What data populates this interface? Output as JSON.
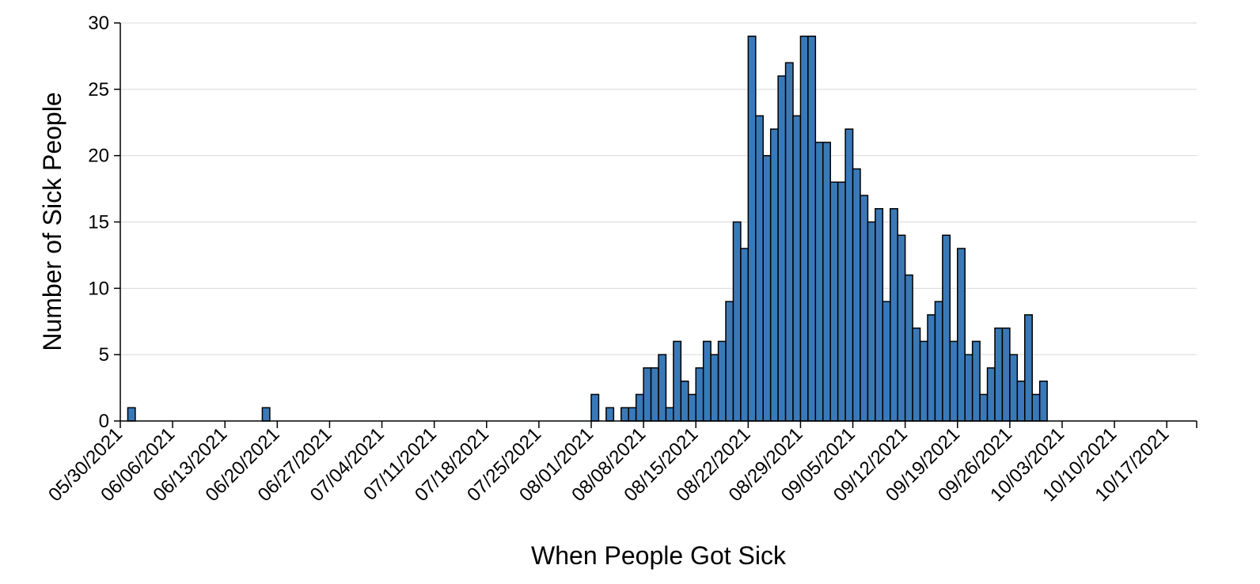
{
  "chart_data": {
    "type": "bar",
    "xlabel": "When People Got Sick",
    "ylabel": "Number of Sick People",
    "ylim": [
      0,
      30
    ],
    "yticks": [
      0,
      5,
      10,
      15,
      20,
      25,
      30
    ],
    "xlim": [
      "05/30/2021",
      "10/21/2021"
    ],
    "xtick_labels": [
      "05/30/2021",
      "06/06/2021",
      "06/13/2021",
      "06/20/2021",
      "06/27/2021",
      "07/04/2021",
      "07/11/2021",
      "07/18/2021",
      "07/25/2021",
      "08/01/2021",
      "08/08/2021",
      "08/15/2021",
      "08/22/2021",
      "08/29/2021",
      "09/05/2021",
      "09/12/2021",
      "09/19/2021",
      "09/26/2021",
      "10/03/2021",
      "10/10/2021",
      "10/17/2021"
    ],
    "grid": true,
    "bar_color": "#3a79b8",
    "dates": [
      "05/31/2021",
      "06/18/2021",
      "08/01/2021",
      "08/03/2021",
      "08/05/2021",
      "08/06/2021",
      "08/07/2021",
      "08/08/2021",
      "08/09/2021",
      "08/10/2021",
      "08/11/2021",
      "08/12/2021",
      "08/13/2021",
      "08/14/2021",
      "08/15/2021",
      "08/16/2021",
      "08/17/2021",
      "08/18/2021",
      "08/19/2021",
      "08/20/2021",
      "08/21/2021",
      "08/22/2021",
      "08/23/2021",
      "08/24/2021",
      "08/25/2021",
      "08/26/2021",
      "08/27/2021",
      "08/28/2021",
      "08/29/2021",
      "08/30/2021",
      "08/31/2021",
      "09/01/2021",
      "09/02/2021",
      "09/03/2021",
      "09/04/2021",
      "09/05/2021",
      "09/06/2021",
      "09/07/2021",
      "09/08/2021",
      "09/09/2021",
      "09/10/2021",
      "09/11/2021",
      "09/12/2021",
      "09/13/2021",
      "09/14/2021",
      "09/15/2021",
      "09/16/2021",
      "09/17/2021",
      "09/18/2021",
      "09/19/2021",
      "09/20/2021",
      "09/21/2021",
      "09/22/2021",
      "09/23/2021",
      "09/24/2021",
      "09/25/2021",
      "09/26/2021",
      "09/27/2021",
      "09/28/2021",
      "09/29/2021",
      "09/30/2021"
    ],
    "values": [
      1,
      1,
      2,
      1,
      1,
      1,
      2,
      4,
      4,
      5,
      1,
      6,
      3,
      2,
      4,
      6,
      5,
      6,
      9,
      15,
      13,
      29,
      23,
      20,
      22,
      26,
      27,
      23,
      29,
      29,
      21,
      21,
      18,
      18,
      22,
      19,
      17,
      15,
      16,
      9,
      16,
      14,
      11,
      7,
      6,
      8,
      9,
      14,
      6,
      13,
      5,
      6,
      2,
      4,
      7,
      7,
      5,
      3,
      8,
      2,
      3
    ]
  }
}
